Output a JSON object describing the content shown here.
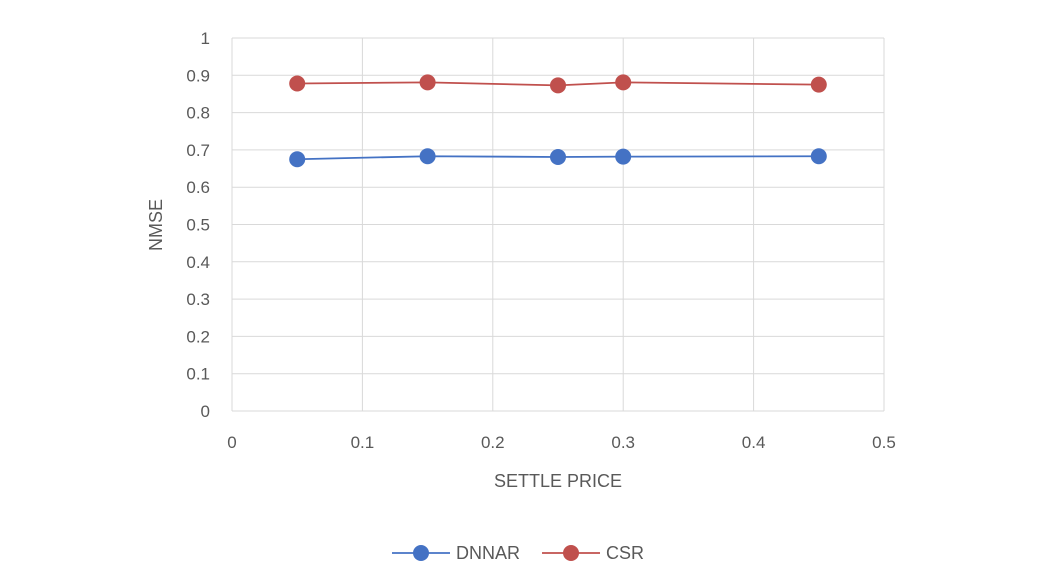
{
  "chart_data": {
    "type": "scatter",
    "title": "",
    "xlabel": "SETTLE PRICE",
    "ylabel": "NMSE",
    "xlim": [
      0,
      0.5
    ],
    "ylim": [
      0,
      1
    ],
    "x_ticks": [
      "0",
      "0.1",
      "0.2",
      "0.3",
      "0.4",
      "0.5"
    ],
    "y_ticks": [
      "0",
      "0.1",
      "0.2",
      "0.3",
      "0.4",
      "0.5",
      "0.6",
      "0.7",
      "0.8",
      "0.9",
      "1"
    ],
    "grid": true,
    "legend_position": "bottom",
    "series": [
      {
        "name": "DNNAR",
        "color": "#4472C4",
        "points": [
          {
            "x": 0.05,
            "y": 0.675
          },
          {
            "x": 0.15,
            "y": 0.683
          },
          {
            "x": 0.25,
            "y": 0.681
          },
          {
            "x": 0.3,
            "y": 0.682
          },
          {
            "x": 0.45,
            "y": 0.683
          }
        ]
      },
      {
        "name": "CSR",
        "color": "#C0504D",
        "points": [
          {
            "x": 0.05,
            "y": 0.878
          },
          {
            "x": 0.15,
            "y": 0.881
          },
          {
            "x": 0.25,
            "y": 0.873
          },
          {
            "x": 0.3,
            "y": 0.881
          },
          {
            "x": 0.45,
            "y": 0.875
          }
        ]
      }
    ]
  }
}
